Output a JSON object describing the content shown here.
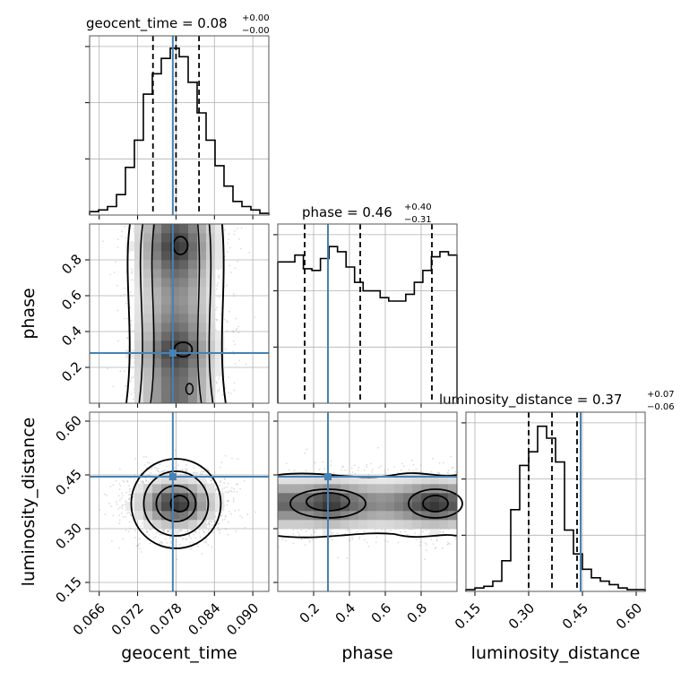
{
  "colors": {
    "truth": "#4682b4",
    "hist": "#000000",
    "grid": "#b0b0b0",
    "frame": "#555555",
    "scatter": "#9a9a9a"
  },
  "chart_data": {
    "type": "corner",
    "parameters": [
      {
        "name": "geocent_time",
        "range": [
          0.0645,
          0.0925
        ],
        "ticks": [
          0.066,
          0.072,
          0.078,
          0.084,
          0.09
        ],
        "tick_labels": [
          "0.066",
          "0.072",
          "0.078",
          "0.084",
          "0.090"
        ],
        "axis_label": "geocent_time",
        "title": {
          "main": "geocent_time = 0.08",
          "sup": "+0.00",
          "sub": "−0.00"
        },
        "truth": 0.0775,
        "quantiles": [
          0.0744,
          0.078,
          0.0816
        ],
        "hist": [
          0.02,
          0.03,
          0.05,
          0.12,
          0.28,
          0.44,
          0.71,
          0.83,
          0.92,
          0.98,
          0.93,
          0.78,
          0.6,
          0.44,
          0.29,
          0.17,
          0.08,
          0.05,
          0.03,
          0.01
        ]
      },
      {
        "name": "phase",
        "range": [
          0.0,
          1.0
        ],
        "ticks": [
          0.2,
          0.4,
          0.6,
          0.8
        ],
        "tick_labels": [
          "0.2",
          "0.4",
          "0.6",
          "0.8"
        ],
        "axis_label": "phase",
        "title": {
          "main": "phase = 0.46",
          "sup": "+0.40",
          "sub": "−0.31"
        },
        "truth": 0.28,
        "quantiles": [
          0.15,
          0.46,
          0.86
        ],
        "hist": [
          0.83,
          0.83,
          0.87,
          0.79,
          0.78,
          0.85,
          0.92,
          0.89,
          0.8,
          0.71,
          0.66,
          0.66,
          0.62,
          0.6,
          0.6,
          0.64,
          0.71,
          0.78,
          0.86,
          0.89,
          0.87
        ]
      },
      {
        "name": "luminosity_distance",
        "range": [
          0.125,
          0.625
        ],
        "ticks": [
          0.15,
          0.3,
          0.45,
          0.6
        ],
        "tick_labels": [
          "0.15",
          "0.30",
          "0.45",
          "0.60"
        ],
        "axis_label": "luminosity_distance",
        "title": {
          "main": "luminosity_distance = 0.37",
          "sup": "+0.07",
          "sub": "−0.06"
        },
        "truth": 0.445,
        "quantiles": [
          0.3,
          0.365,
          0.435
        ],
        "hist": [
          0.01,
          0.02,
          0.03,
          0.06,
          0.18,
          0.48,
          0.74,
          0.82,
          0.97,
          0.9,
          0.76,
          0.36,
          0.22,
          0.13,
          0.08,
          0.06,
          0.04,
          0.02,
          0.01,
          0.01
        ]
      }
    ],
    "joint": [
      {
        "x": "geocent_time",
        "y": "phase",
        "description": "vertical band centered at geocent_time 0.078 spanning full phase range, density peaks near phase 0.30 and 0.88"
      },
      {
        "x": "geocent_time",
        "y": "luminosity_distance",
        "description": "compact blob centered at (0.078, 0.37)"
      },
      {
        "x": "phase",
        "y": "luminosity_distance",
        "description": "horizontal band centered at luminosity_distance 0.37, density peaks near phase 0.28 and 0.86"
      }
    ],
    "grid": true
  }
}
